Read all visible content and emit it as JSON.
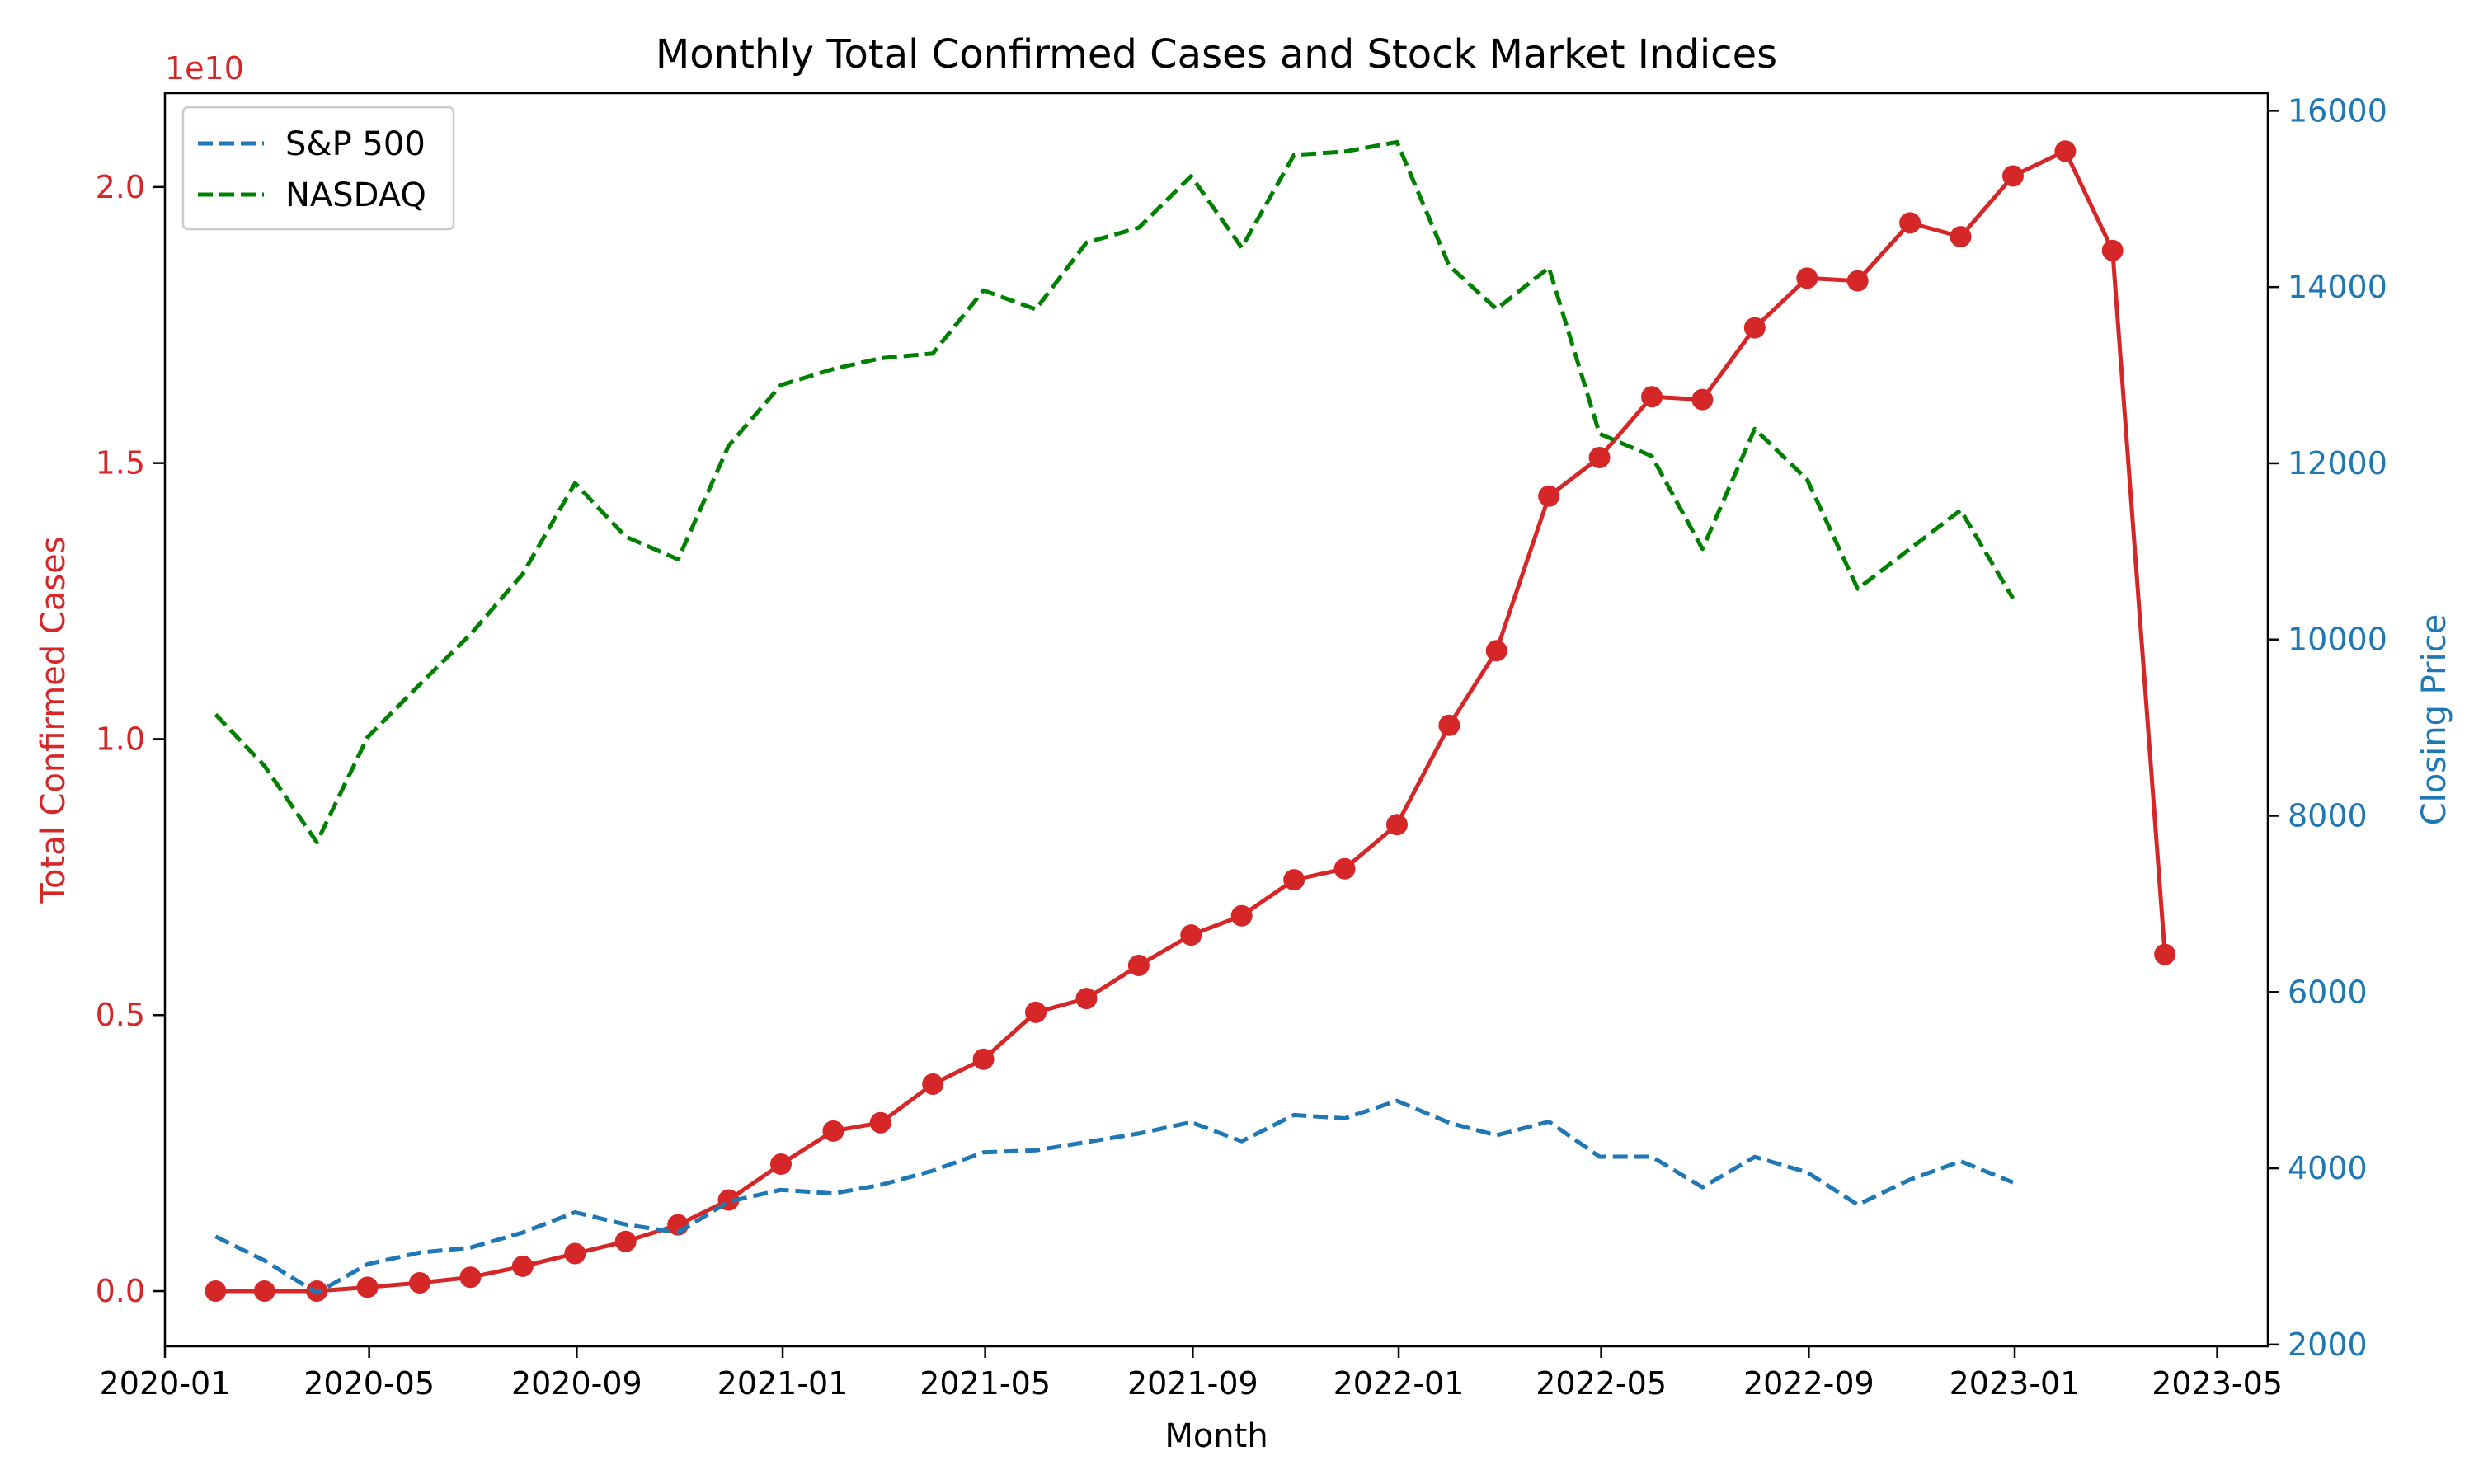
{
  "chart_data": {
    "type": "line",
    "title": "Monthly Total Confirmed Cases and Stock Market Indices",
    "xlabel": "Month",
    "ylabel_left": "Total Confirmed Cases",
    "ylabel_right": "Closing Price",
    "left_offset_label": "1e10",
    "left_ylim": [
      -0.1,
      2.17
    ],
    "left_ticks": [
      0.0,
      0.5,
      1.0,
      1.5,
      2.0
    ],
    "left_tick_labels": [
      "0.0",
      "0.5",
      "1.0",
      "1.5",
      "2.0"
    ],
    "right_ylim": [
      1980,
      16200
    ],
    "right_ticks": [
      2000,
      4000,
      6000,
      8000,
      10000,
      12000,
      14000,
      16000
    ],
    "right_tick_labels": [
      "2000",
      "4000",
      "6000",
      "8000",
      "10000",
      "12000",
      "14000",
      "16000"
    ],
    "xlim": [
      "2020-01-01",
      "2023-05-31"
    ],
    "x_ticks": [
      "2020-01-01",
      "2020-05-01",
      "2020-09-01",
      "2021-01-01",
      "2021-05-01",
      "2021-09-01",
      "2022-01-01",
      "2022-05-01",
      "2022-09-01",
      "2023-01-01",
      "2023-05-01"
    ],
    "x_tick_labels": [
      "2020-01",
      "2020-05",
      "2020-09",
      "2021-01",
      "2021-05",
      "2021-09",
      "2022-01",
      "2022-05",
      "2022-09",
      "2023-01",
      "2023-05"
    ],
    "legend_position": "top-left",
    "grid": false,
    "colors": {
      "cases": "#d62728",
      "sp500": "#1f77b4",
      "nasdaq": "#008000",
      "left_axis": "#d62728",
      "right_axis": "#1f77b4"
    },
    "series": [
      {
        "name": "Total Confirmed Cases",
        "axis": "left",
        "style": "solid-markers",
        "color": "#d62728",
        "x": [
          "2020-01-31",
          "2020-02-29",
          "2020-03-31",
          "2020-04-30",
          "2020-05-31",
          "2020-06-30",
          "2020-07-31",
          "2020-08-31",
          "2020-09-30",
          "2020-10-31",
          "2020-11-30",
          "2020-12-31",
          "2021-01-31",
          "2021-02-28",
          "2021-03-31",
          "2021-04-30",
          "2021-05-31",
          "2021-06-30",
          "2021-07-31",
          "2021-08-31",
          "2021-09-30",
          "2021-10-31",
          "2021-11-30",
          "2021-12-31",
          "2022-01-31",
          "2022-02-28",
          "2022-03-31",
          "2022-04-30",
          "2022-05-31",
          "2022-06-30",
          "2022-07-31",
          "2022-08-31",
          "2022-09-30",
          "2022-10-31",
          "2022-11-30",
          "2022-12-31",
          "2023-01-31",
          "2023-02-28",
          "2023-03-31"
        ],
        "values": [
          0.0,
          0.0,
          0.0,
          0.007,
          0.015,
          0.025,
          0.045,
          0.068,
          0.09,
          0.12,
          0.165,
          0.23,
          0.29,
          0.305,
          0.375,
          0.42,
          0.505,
          0.53,
          0.59,
          0.645,
          0.68,
          0.745,
          0.765,
          0.845,
          1.025,
          1.16,
          1.44,
          1.51,
          1.62,
          1.615,
          1.745,
          1.835,
          1.83,
          1.935,
          1.91,
          2.02,
          2.065,
          1.885,
          0.61
        ]
      },
      {
        "name": "S&P 500",
        "axis": "right",
        "style": "dashed",
        "color": "#1f77b4",
        "x": [
          "2020-01-31",
          "2020-02-29",
          "2020-03-31",
          "2020-04-30",
          "2020-05-31",
          "2020-06-30",
          "2020-07-31",
          "2020-08-31",
          "2020-09-30",
          "2020-10-31",
          "2020-11-30",
          "2020-12-31",
          "2021-01-31",
          "2021-02-28",
          "2021-03-31",
          "2021-04-30",
          "2021-05-31",
          "2021-06-30",
          "2021-07-31",
          "2021-08-31",
          "2021-09-30",
          "2021-10-31",
          "2021-11-30",
          "2021-12-31",
          "2022-01-31",
          "2022-02-28",
          "2022-03-31",
          "2022-04-30",
          "2022-05-31",
          "2022-06-30",
          "2022-07-31",
          "2022-08-31",
          "2022-09-30",
          "2022-10-31",
          "2022-11-30",
          "2022-12-31"
        ],
        "values": [
          3226,
          2954,
          2585,
          2912,
          3044,
          3100,
          3271,
          3500,
          3363,
          3270,
          3622,
          3756,
          3714,
          3811,
          3973,
          4181,
          4204,
          4297,
          4395,
          4523,
          4307,
          4605,
          4567,
          4766,
          4516,
          4374,
          4530,
          4132,
          4132,
          3785,
          4130,
          3955,
          3586,
          3872,
          4080,
          3840
        ]
      },
      {
        "name": "NASDAQ",
        "axis": "right",
        "style": "dashed",
        "color": "#008000",
        "x": [
          "2020-01-31",
          "2020-02-29",
          "2020-03-31",
          "2020-04-30",
          "2020-05-31",
          "2020-06-30",
          "2020-07-31",
          "2020-08-31",
          "2020-09-30",
          "2020-10-31",
          "2020-11-30",
          "2020-12-31",
          "2021-01-31",
          "2021-02-28",
          "2021-03-31",
          "2021-04-30",
          "2021-05-31",
          "2021-06-30",
          "2021-07-31",
          "2021-08-31",
          "2021-09-30",
          "2021-10-31",
          "2021-11-30",
          "2021-12-31",
          "2022-01-31",
          "2022-02-28",
          "2022-03-31",
          "2022-04-30",
          "2022-05-31",
          "2022-06-30",
          "2022-07-31",
          "2022-08-31",
          "2022-09-30",
          "2022-10-31",
          "2022-11-30",
          "2022-12-31"
        ],
        "values": [
          9150,
          8567,
          7700,
          8890,
          9490,
          10058,
          10745,
          11775,
          11168,
          10911,
          12199,
          12888,
          13070,
          13192,
          13247,
          13962,
          13748,
          14504,
          14673,
          15259,
          14448,
          15498,
          15537,
          15645,
          14240,
          13751,
          14220,
          12335,
          12081,
          11028,
          12391,
          11816,
          10576,
          11030,
          11468,
          10466
        ]
      }
    ]
  }
}
